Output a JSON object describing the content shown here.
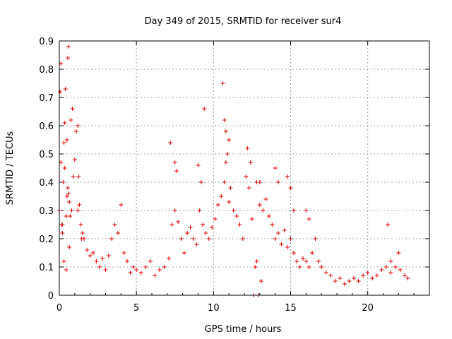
{
  "chart_data": {
    "type": "scatter",
    "title": "Day 349 of 2015, SRMTID for receiver sur4",
    "xlabel": "GPS time / hours",
    "ylabel": "SRMTID / TECUs",
    "xlim": [
      0,
      24
    ],
    "ylim": [
      0,
      0.9
    ],
    "xticks": [
      0,
      5,
      10,
      15,
      20
    ],
    "yticks": [
      0,
      0.1,
      0.2,
      0.3,
      0.4,
      0.5,
      0.6,
      0.7,
      0.8,
      0.9
    ],
    "xtick_labels": [
      "0",
      "5",
      "10",
      "15",
      "20"
    ],
    "ytick_labels": [
      "0",
      "0.1",
      "0.2",
      "0.3",
      "0.4",
      "0.5",
      "0.6",
      "0.7",
      "0.8",
      "0.9"
    ],
    "grid": true,
    "marker": "+",
    "color": "#e00000",
    "series": [
      {
        "name": "sur4",
        "x": [
          0.0,
          0.05,
          0.1,
          0.15,
          0.2,
          0.25,
          0.3,
          0.35,
          0.4,
          0.45,
          0.5,
          0.55,
          0.6,
          0.65,
          0.7,
          0.8,
          0.9,
          1.0,
          1.1,
          1.2,
          1.3,
          1.4,
          1.5,
          1.6,
          1.8,
          2.0,
          2.2,
          2.4,
          2.6,
          2.8,
          3.0,
          3.2,
          3.4,
          3.6,
          3.8,
          4.0,
          4.2,
          4.4,
          4.6,
          4.8,
          5.0,
          5.3,
          5.6,
          5.9,
          6.2,
          6.5,
          6.8,
          7.1,
          7.3,
          7.5,
          7.7,
          7.9,
          8.1,
          8.3,
          8.5,
          8.7,
          8.9,
          9.1,
          9.3,
          9.5,
          9.7,
          9.9,
          10.1,
          10.3,
          10.5,
          10.7,
          10.8,
          10.9,
          11.0,
          11.1,
          11.3,
          11.5,
          11.7,
          11.9,
          12.1,
          12.3,
          12.5,
          12.6,
          12.7,
          12.8,
          12.9,
          13.0,
          13.2,
          13.4,
          13.6,
          13.8,
          14.0,
          14.2,
          14.4,
          14.6,
          14.8,
          15.0,
          15.2,
          15.4,
          15.6,
          15.8,
          16.0,
          16.2,
          16.4,
          16.6,
          16.8,
          17.0,
          17.3,
          17.6,
          17.9,
          18.2,
          18.5,
          18.8,
          19.1,
          19.4,
          19.7,
          20.0,
          20.3,
          20.6,
          20.9,
          21.2,
          21.5,
          21.8,
          22.1,
          22.4,
          22.6,
          0.1,
          0.2,
          0.3,
          0.35,
          0.45,
          0.5,
          0.55,
          0.6,
          0.65,
          0.75,
          0.85,
          1.2,
          1.25,
          1.45,
          7.2,
          7.5,
          7.6,
          9.0,
          9.2,
          9.4,
          10.6,
          10.7,
          10.8,
          11.0,
          12.2,
          12.4,
          12.8,
          13.0,
          13.1,
          14.0,
          14.2,
          14.8,
          15.0,
          15.2,
          16.0,
          16.2,
          21.3,
          21.5,
          22.0
        ],
        "y": [
          0.3,
          0.72,
          0.47,
          0.25,
          0.22,
          0.4,
          0.54,
          0.61,
          0.73,
          0.28,
          0.35,
          0.38,
          0.36,
          0.33,
          0.28,
          0.3,
          0.42,
          0.48,
          0.58,
          0.3,
          0.32,
          0.25,
          0.22,
          0.2,
          0.16,
          0.14,
          0.15,
          0.12,
          0.1,
          0.13,
          0.09,
          0.14,
          0.2,
          0.25,
          0.22,
          0.32,
          0.15,
          0.12,
          0.08,
          0.1,
          0.09,
          0.08,
          0.1,
          0.12,
          0.07,
          0.09,
          0.1,
          0.13,
          0.25,
          0.3,
          0.26,
          0.2,
          0.15,
          0.22,
          0.24,
          0.2,
          0.18,
          0.3,
          0.25,
          0.22,
          0.2,
          0.24,
          0.27,
          0.32,
          0.35,
          0.4,
          0.47,
          0.5,
          0.55,
          0.38,
          0.3,
          0.28,
          0.25,
          0.2,
          0.42,
          0.38,
          0.27,
          0.0,
          0.1,
          0.12,
          0.0,
          0.32,
          0.3,
          0.34,
          0.28,
          0.25,
          0.2,
          0.22,
          0.18,
          0.23,
          0.17,
          0.2,
          0.15,
          0.12,
          0.1,
          0.13,
          0.12,
          0.1,
          0.15,
          0.2,
          0.12,
          0.1,
          0.08,
          0.07,
          0.05,
          0.06,
          0.04,
          0.05,
          0.06,
          0.05,
          0.07,
          0.08,
          0.06,
          0.07,
          0.09,
          0.1,
          0.08,
          0.1,
          0.09,
          0.07,
          0.06,
          0.82,
          0.25,
          0.12,
          0.45,
          0.09,
          0.55,
          0.84,
          0.88,
          0.17,
          0.62,
          0.66,
          0.6,
          0.42,
          0.2,
          0.54,
          0.47,
          0.44,
          0.46,
          0.4,
          0.66,
          0.75,
          0.62,
          0.58,
          0.33,
          0.52,
          0.47,
          0.4,
          0.4,
          0.05,
          0.45,
          0.4,
          0.42,
          0.38,
          0.3,
          0.3,
          0.27,
          0.25,
          0.12,
          0.15
        ]
      }
    ]
  }
}
